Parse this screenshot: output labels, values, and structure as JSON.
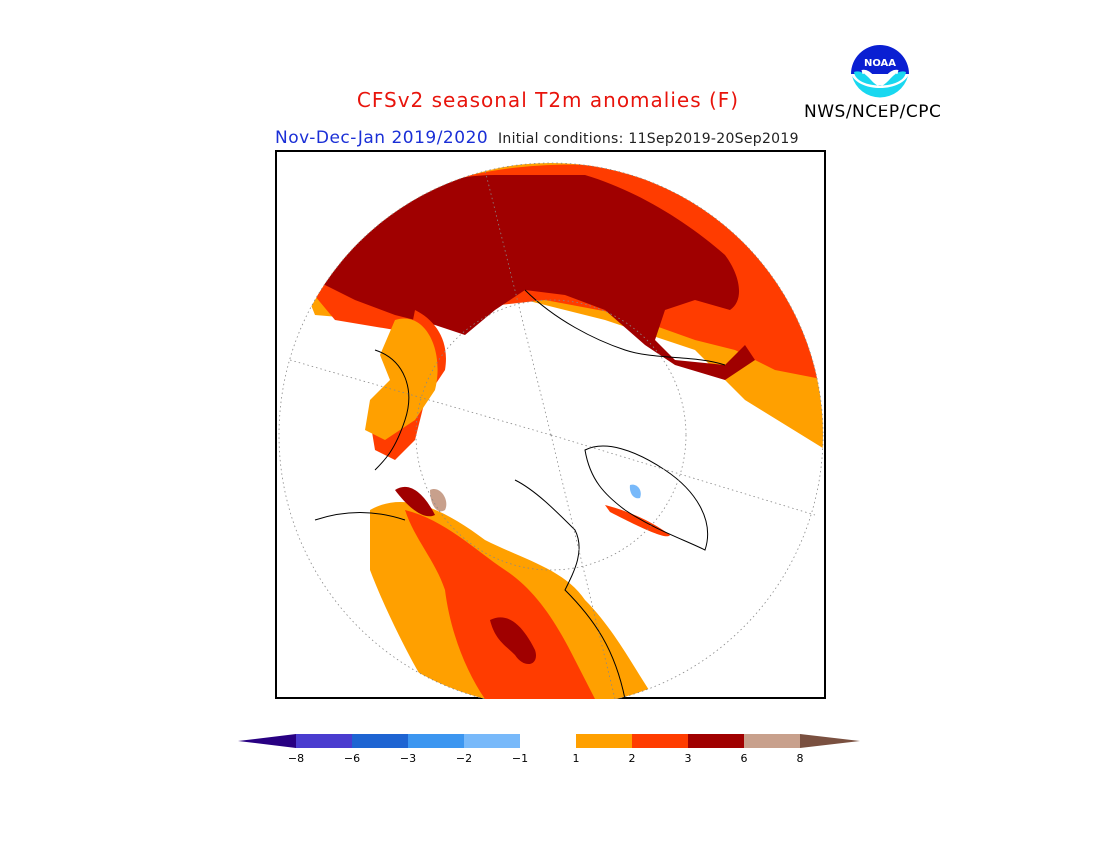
{
  "title": "CFSv2 seasonal T2m anomalies (F)",
  "season": "Nov-Dec-Jan 2019/2020",
  "initial_conditions": "Initial conditions: 11Sep2019-20Sep2019",
  "organization": "NWS/NCEP/CPC",
  "logo": {
    "text": "NOAA",
    "icon": "noaa-logo-icon"
  },
  "colors": {
    "m8": "#280082",
    "m6": "#4a3ccf",
    "m3": "#1e64d2",
    "m2": "#3c96f0",
    "m1": "#78b9fa",
    "neutral": "#ffffff",
    "p1": "#ffa000",
    "p2": "#ff3c00",
    "p3": "#a00000",
    "p6": "#c8a08c",
    "p8": "#7a5040"
  },
  "colorbar": {
    "ticks": [
      "-8",
      "-6",
      "-3",
      "-2",
      "-1",
      "1",
      "2",
      "3",
      "6",
      "8"
    ]
  }
}
